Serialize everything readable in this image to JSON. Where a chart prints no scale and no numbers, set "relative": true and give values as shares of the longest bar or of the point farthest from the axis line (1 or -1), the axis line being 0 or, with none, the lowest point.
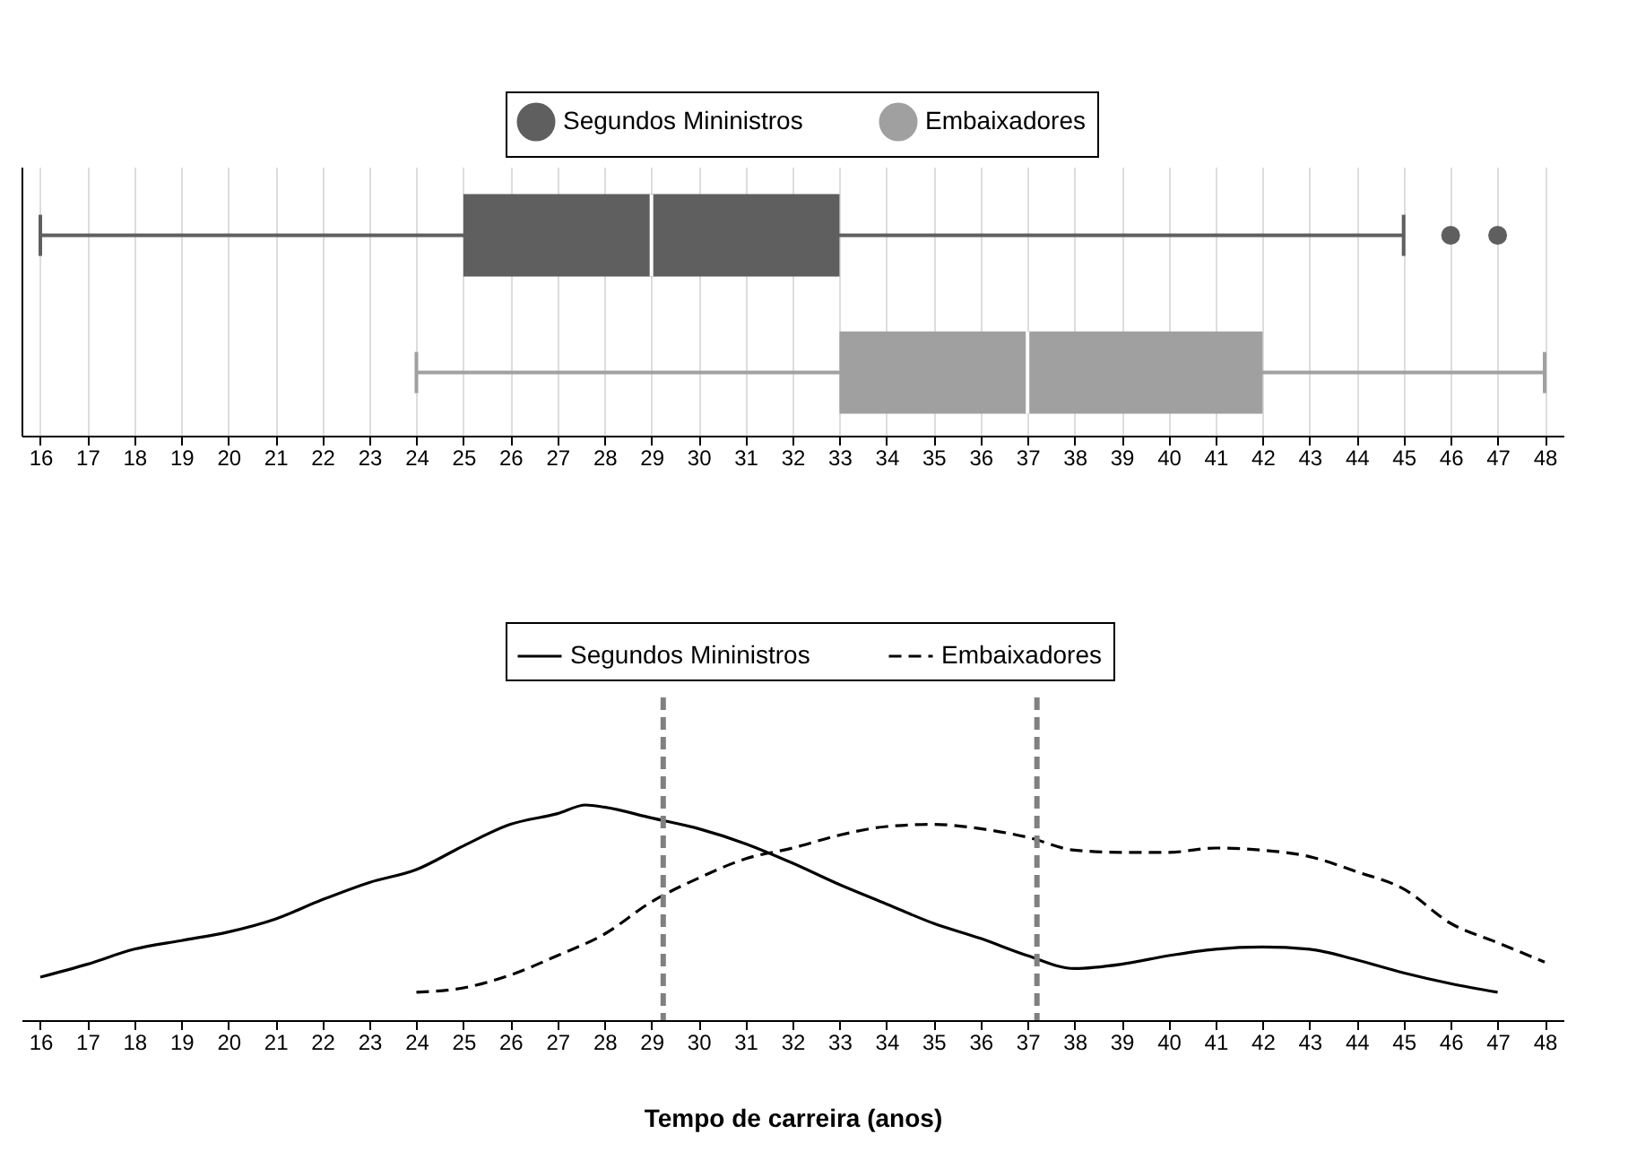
{
  "chart_data": [
    {
      "type": "box",
      "orientation": "horizontal",
      "categories": [
        null
      ],
      "series": [
        {
          "name": "Segundos Mininistros",
          "color": "#5f5f5f",
          "boxes": [
            {
              "low": 16,
              "q1": 25,
              "median": 29,
              "q3": 33,
              "high": 45,
              "outliers": [
                46,
                47
              ]
            }
          ]
        },
        {
          "name": "Embaixadores",
          "color": "#a0a0a0",
          "boxes": [
            {
              "low": 24,
              "q1": 33,
              "median": 37,
              "q3": 42,
              "high": 48
            }
          ]
        }
      ],
      "xlim": [
        15.6,
        48.4
      ],
      "xticks": [
        16,
        17,
        18,
        19,
        20,
        21,
        22,
        23,
        24,
        25,
        26,
        27,
        28,
        29,
        30,
        31,
        32,
        33,
        34,
        35,
        36,
        37,
        38,
        39,
        40,
        41,
        42,
        43,
        44,
        45,
        46,
        47,
        48
      ],
      "grid": "x",
      "legend": "top"
    },
    {
      "type": "line",
      "relative": true,
      "xlabel": "Tempo de carreira (anos)",
      "series": [
        {
          "name": "Segundos Mininistros",
          "color": "#000000",
          "line_style": "solid",
          "x": [
            16,
            17,
            18,
            19,
            20,
            21,
            22,
            23,
            24,
            25,
            26,
            27,
            27.6,
            28,
            29,
            30,
            31,
            32,
            33,
            34,
            35,
            36,
            37,
            38,
            39,
            40,
            41,
            42,
            43,
            44,
            45,
            46,
            47
          ],
          "values": [
            0.2,
            0.26,
            0.33,
            0.37,
            0.41,
            0.47,
            0.56,
            0.64,
            0.7,
            0.81,
            0.91,
            0.96,
            1.0,
            0.99,
            0.94,
            0.89,
            0.82,
            0.73,
            0.63,
            0.54,
            0.45,
            0.38,
            0.3,
            0.24,
            0.26,
            0.3,
            0.33,
            0.34,
            0.33,
            0.28,
            0.22,
            0.17,
            0.13
          ]
        },
        {
          "name": "Embaixadores",
          "color": "#000000",
          "line_style": "dashed",
          "x": [
            24,
            25,
            26,
            27,
            28,
            29,
            30,
            31,
            32,
            33,
            34,
            35,
            36,
            37,
            38,
            39,
            40,
            41,
            42,
            43,
            44,
            45,
            46,
            47,
            48
          ],
          "values": [
            0.13,
            0.15,
            0.21,
            0.3,
            0.4,
            0.55,
            0.66,
            0.75,
            0.8,
            0.86,
            0.9,
            0.91,
            0.89,
            0.85,
            0.79,
            0.78,
            0.78,
            0.8,
            0.79,
            0.76,
            0.69,
            0.61,
            0.45,
            0.36,
            0.27
          ]
        }
      ],
      "ref_lines": [
        {
          "axis": "x",
          "value": 29.25,
          "color": "#808080",
          "line_style": "dashed"
        },
        {
          "axis": "x",
          "value": 37.2,
          "color": "#808080",
          "line_style": "dashed"
        }
      ],
      "xlim": [
        15.6,
        48.4
      ],
      "xticks": [
        16,
        17,
        18,
        19,
        20,
        21,
        22,
        23,
        24,
        25,
        26,
        27,
        28,
        29,
        30,
        31,
        32,
        33,
        34,
        35,
        36,
        37,
        38,
        39,
        40,
        41,
        42,
        43,
        44,
        45,
        46,
        47,
        48
      ],
      "legend": "top"
    }
  ]
}
